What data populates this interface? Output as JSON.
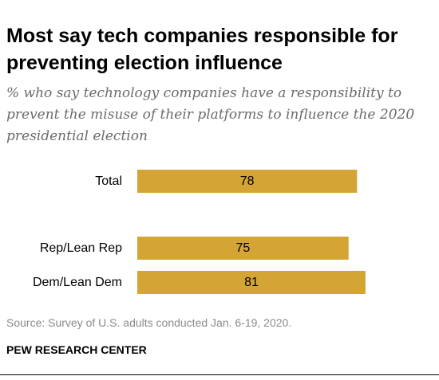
{
  "chart_data": {
    "type": "bar",
    "orientation": "horizontal",
    "title": "Most say tech companies responsible for preventing election influence",
    "subtitle": "% who say technology companies have a responsibility to prevent the misuse of their platforms to influence the 2020 presidential election",
    "categories": [
      "Total",
      "Rep/Lean Rep",
      "Dem/Lean Dem"
    ],
    "values": [
      78,
      75,
      81
    ],
    "data_labels": [
      "78",
      "75",
      "81"
    ],
    "xlim": [
      0,
      100
    ],
    "grid": false,
    "legend": "none",
    "bar_color": "#d4a535",
    "source": "Source: Survey of U.S. adults conducted Jan. 6-19, 2020.",
    "brand": "PEW RESEARCH CENTER"
  }
}
